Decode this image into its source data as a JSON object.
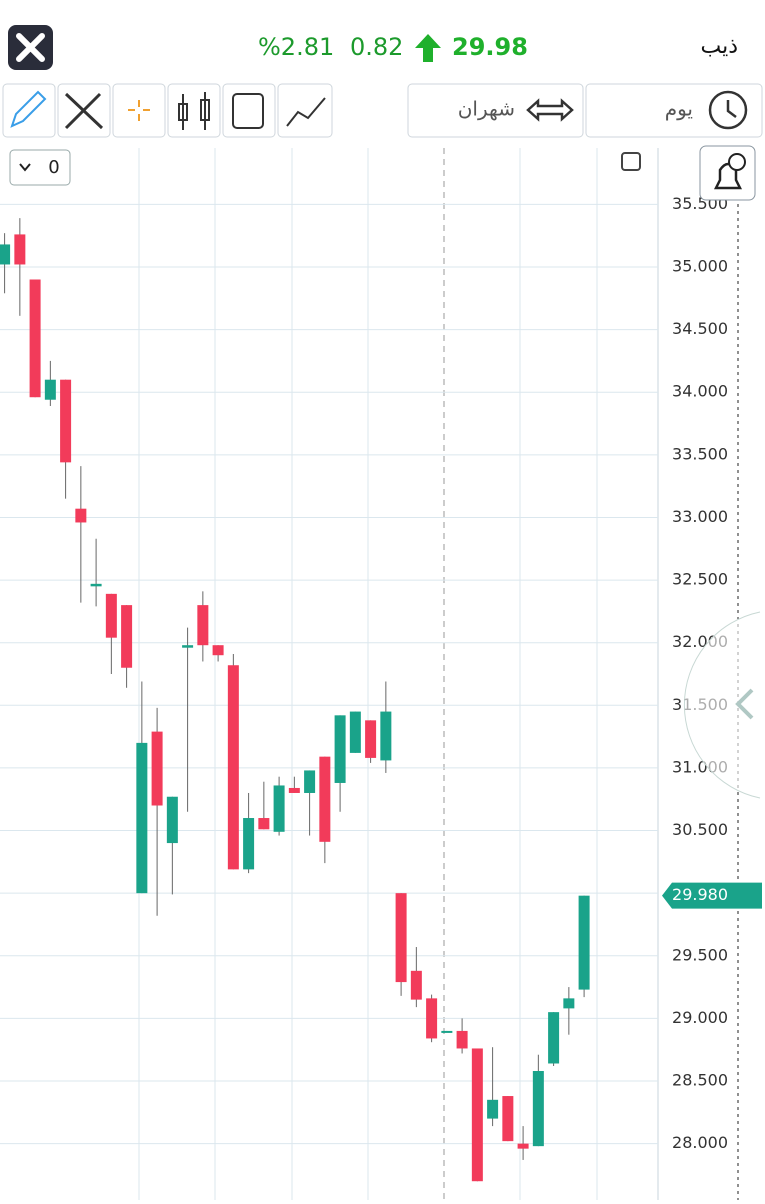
{
  "header": {
    "symbol": "ذيب",
    "price": "29.98",
    "change": "0.82",
    "change_percent": "%2.81"
  },
  "toolbar": {
    "period": "شهران",
    "interval": "يوم",
    "indicator_count": "0"
  },
  "chart_data": {
    "type": "candlestick",
    "open": [
      35.02,
      35.26,
      34.9,
      33.94,
      34.1,
      33.07,
      32.45,
      32.39,
      32.3,
      30.0,
      31.29,
      30.4,
      31.96,
      32.3,
      31.98,
      31.82,
      30.19,
      30.6,
      30.49,
      30.84,
      30.8,
      31.09,
      30.88,
      31.12,
      31.38,
      31.06,
      30.0,
      29.38,
      29.16,
      28.89,
      28.9,
      28.76,
      28.2,
      28.38,
      28.0,
      27.98,
      28.64,
      29.08,
      29.23
    ],
    "high": [
      35.27,
      35.39,
      34.9,
      34.25,
      34.1,
      33.41,
      32.83,
      32.39,
      32.3,
      31.69,
      31.48,
      30.77,
      32.12,
      32.41,
      31.98,
      31.91,
      30.8,
      30.89,
      30.93,
      30.93,
      30.98,
      31.09,
      31.42,
      31.45,
      31.38,
      31.69,
      30.0,
      29.57,
      29.19,
      28.9,
      29.0,
      28.76,
      28.77,
      28.38,
      28.14,
      28.71,
      29.05,
      29.25,
      29.98
    ],
    "low": [
      34.79,
      34.61,
      33.96,
      33.89,
      33.15,
      32.32,
      32.29,
      31.75,
      31.64,
      30.0,
      29.82,
      29.99,
      30.65,
      31.85,
      31.85,
      30.19,
      30.16,
      30.51,
      30.46,
      30.8,
      30.46,
      30.24,
      30.65,
      31.12,
      31.04,
      30.96,
      29.18,
      29.09,
      28.81,
      28.89,
      28.72,
      27.7,
      28.14,
      28.02,
      27.87,
      27.98,
      28.62,
      28.87,
      29.17
    ],
    "close": [
      35.18,
      35.02,
      33.96,
      34.1,
      33.44,
      32.96,
      32.47,
      32.04,
      31.8,
      31.2,
      30.7,
      30.77,
      31.98,
      31.98,
      31.9,
      30.19,
      30.6,
      30.51,
      30.86,
      30.8,
      30.98,
      30.41,
      31.42,
      31.45,
      31.08,
      31.45,
      29.29,
      29.15,
      28.84,
      28.9,
      28.76,
      27.7,
      28.35,
      28.02,
      27.96,
      28.58,
      29.05,
      29.16,
      29.98
    ],
    "up_color": "#1aa38a",
    "down_color": "#f23b5a",
    "ylim": [
      27.55,
      35.95
    ],
    "yticks": [
      {
        "value": 28,
        "label": "28.000"
      },
      {
        "value": 28.5,
        "label": "28.500"
      },
      {
        "value": 29,
        "label": "29.000"
      },
      {
        "value": 29.5,
        "label": "29.500"
      },
      {
        "value": 30,
        "label": "30.000"
      },
      {
        "value": 30.5,
        "label": "30.500"
      },
      {
        "value": 31,
        "label": "31.000"
      },
      {
        "value": 31.5,
        "label": "31.500"
      },
      {
        "value": 32,
        "label": "32.000"
      },
      {
        "value": 32.5,
        "label": "32.500"
      },
      {
        "value": 33,
        "label": "33.000"
      },
      {
        "value": 33.5,
        "label": "33.500"
      },
      {
        "value": 34,
        "label": "34.000"
      },
      {
        "value": 34.5,
        "label": "34.500"
      },
      {
        "value": 35,
        "label": "35.000"
      },
      {
        "value": 35.5,
        "label": "35.500"
      }
    ],
    "last_price": {
      "value": 29.98,
      "label": "29.980"
    },
    "grid": true
  }
}
